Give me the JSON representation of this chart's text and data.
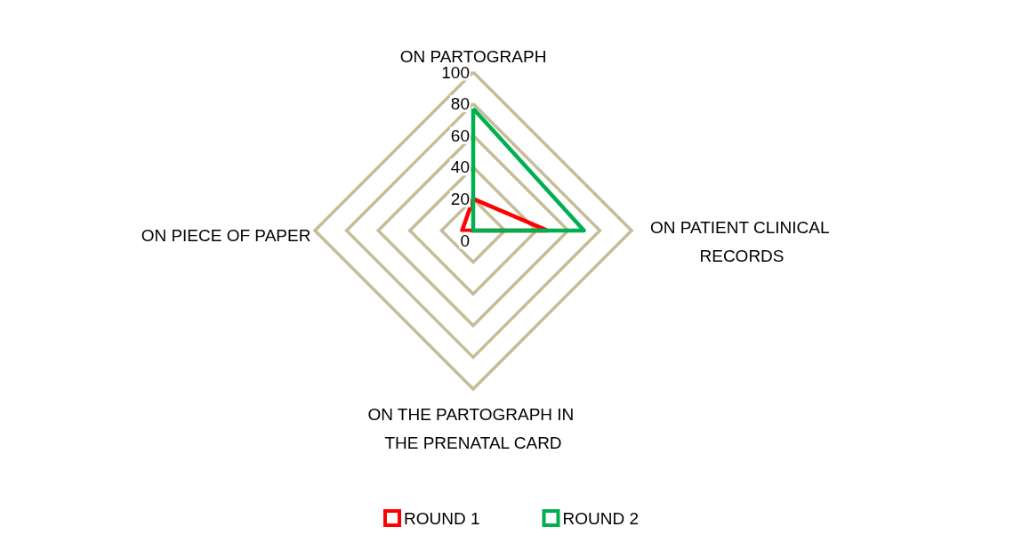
{
  "chart_data": {
    "type": "radar",
    "categories": [
      "ON PARTOGRAPH",
      "ON PATIENT CLINICAL RECORDS",
      "ON THE PARTOGRAPH IN THE PRENATAL CARD",
      "ON PIECE OF PAPER"
    ],
    "series": [
      {
        "name": "ROUND 1",
        "color": "#ff0000",
        "values": [
          20,
          47,
          0,
          7
        ]
      },
      {
        "name": "ROUND 2",
        "color": "#00b050",
        "values": [
          77,
          70,
          0,
          0
        ]
      }
    ],
    "ylim": [
      0,
      100
    ],
    "yticks": [
      0,
      20,
      40,
      60,
      80,
      100
    ],
    "legend": "bottom",
    "marker": "none",
    "line_style": "solid"
  }
}
